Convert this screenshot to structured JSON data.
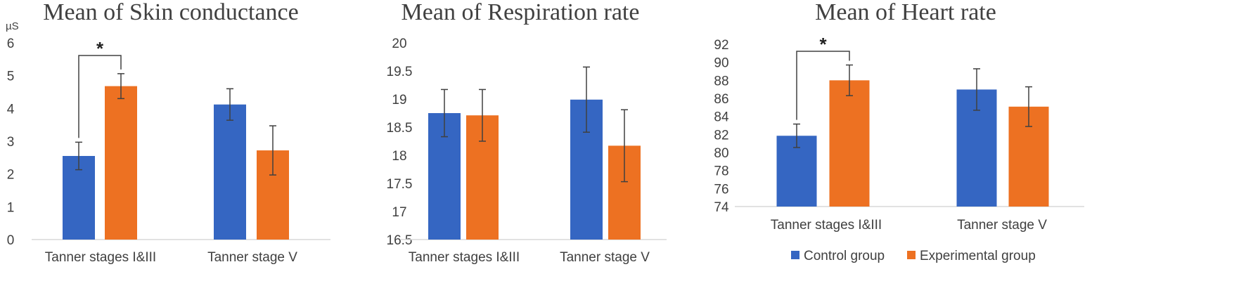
{
  "legend": {
    "items": [
      {
        "label": "Control group",
        "color": "#3566c2"
      },
      {
        "label": "Experimental group",
        "color": "#ed7122"
      }
    ]
  },
  "chart_data": [
    {
      "type": "bar",
      "title": "Mean of Skin conductance",
      "unit_label": "µS",
      "categories": [
        "Tanner stages I&III",
        "Tanner stage V"
      ],
      "ylim": [
        0,
        6
      ],
      "yticks": [
        "0",
        "1",
        "2",
        "3",
        "4",
        "5",
        "6"
      ],
      "series": [
        {
          "name": "Control group",
          "values": [
            2.55,
            4.12
          ],
          "errors": [
            0.42,
            0.48
          ]
        },
        {
          "name": "Experimental group",
          "values": [
            4.68,
            2.72
          ],
          "errors": [
            0.38,
            0.75
          ]
        }
      ],
      "significance": [
        {
          "category": "Tanner stages I&III",
          "label": "*"
        }
      ]
    },
    {
      "type": "bar",
      "title": "Mean of Respiration rate",
      "categories": [
        "Tanner stages I&III",
        "Tanner stage V"
      ],
      "ylim": [
        16.5,
        20
      ],
      "yticks": [
        "16.5",
        "17",
        "17.5",
        "18",
        "18.5",
        "19",
        "19.5",
        "20"
      ],
      "series": [
        {
          "name": "Control group",
          "values": [
            18.75,
            18.99
          ],
          "errors": [
            0.42,
            0.58
          ]
        },
        {
          "name": "Experimental group",
          "values": [
            18.71,
            18.17
          ],
          "errors": [
            0.46,
            0.64
          ]
        }
      ]
    },
    {
      "type": "bar",
      "title": "Mean of Heart rate",
      "categories": [
        "Tanner stages I&III",
        "Tanner stage V"
      ],
      "ylim": [
        74,
        92
      ],
      "yticks": [
        "74",
        "76",
        "78",
        "80",
        "82",
        "84",
        "86",
        "88",
        "90",
        "92"
      ],
      "series": [
        {
          "name": "Control group",
          "values": [
            81.85,
            86.98
          ],
          "errors": [
            1.3,
            2.3
          ]
        },
        {
          "name": "Experimental group",
          "values": [
            88.0,
            85.08
          ],
          "errors": [
            1.7,
            2.2
          ]
        }
      ],
      "significance": [
        {
          "category": "Tanner stages I&III",
          "label": "*"
        }
      ]
    }
  ]
}
